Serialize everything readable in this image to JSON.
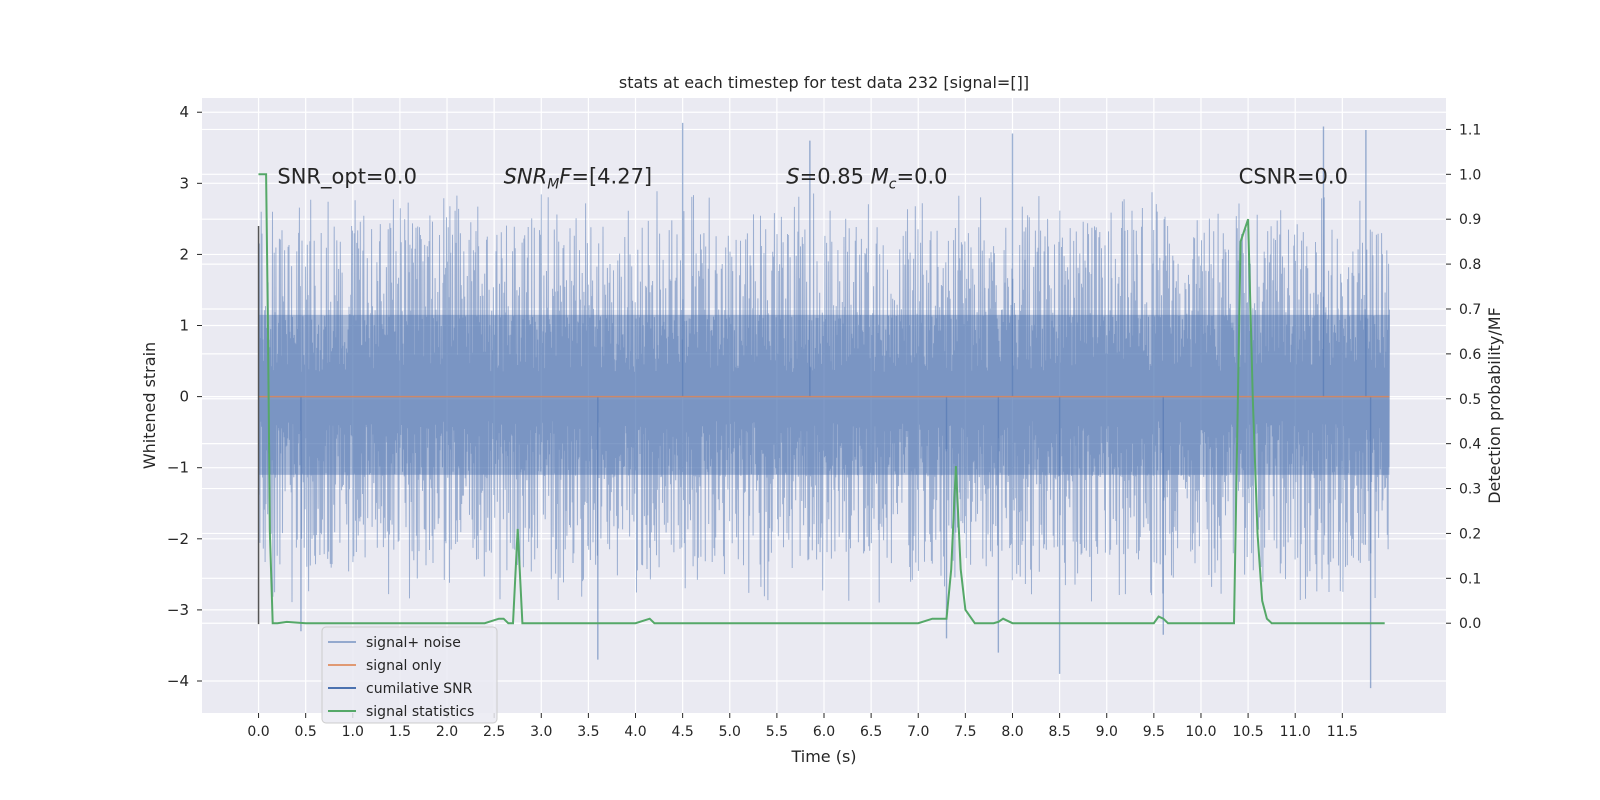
{
  "chart_data": {
    "type": "line",
    "title": "stats at each timestep for test data 232 [signal=[]]",
    "xlabel": "Time (s)",
    "ylabel_left": "Whitened strain",
    "ylabel_right": "Detection probability/MF",
    "xlim": [
      -0.6,
      12.6
    ],
    "ylim_left": [
      -4.45,
      4.2
    ],
    "ylim_right": [
      -0.2,
      1.17
    ],
    "x_ticks": [
      0.0,
      0.5,
      1.0,
      1.5,
      2.0,
      2.5,
      3.0,
      3.5,
      4.0,
      4.5,
      5.0,
      5.5,
      6.0,
      6.5,
      7.0,
      7.5,
      8.0,
      8.5,
      9.0,
      9.5,
      10.0,
      10.5,
      11.0,
      11.5
    ],
    "x_tick_labels": [
      "0.0",
      "0.5",
      "1.0",
      "1.5",
      "2.0",
      "2.5",
      "3.0",
      "3.5",
      "4.0",
      "4.5",
      "5.0",
      "5.5",
      "6.0",
      "6.5",
      "7.0",
      "7.5",
      "8.0",
      "8.5",
      "9.0",
      "9.5",
      "10.0",
      "10.5",
      "11.0",
      "11.5"
    ],
    "y_left_ticks": [
      4,
      3,
      2,
      1,
      0,
      -1,
      -2,
      -3,
      -4
    ],
    "y_left_tick_labels": [
      "4",
      "3",
      "2",
      "1",
      "0",
      "−1",
      "−2",
      "−3",
      "−4"
    ],
    "y_right_ticks": [
      1.1,
      1.0,
      0.9,
      0.8,
      0.7,
      0.6,
      0.5,
      0.4,
      0.3,
      0.2,
      0.1,
      0.0
    ],
    "y_right_tick_labels": [
      "1.1",
      "1.0",
      "0.9",
      "0.8",
      "0.7",
      "0.6",
      "0.5",
      "0.4",
      "0.3",
      "0.2",
      "0.1",
      "0.0"
    ],
    "grid": true,
    "legend_position": "lower-left",
    "annotations": [
      {
        "text": "SNR_opt=0.0",
        "x": 0.2,
        "y": 3.0
      },
      {
        "text": "SNR_MF=[4.27]",
        "x": 2.6,
        "y": 3.0
      },
      {
        "text": "S=0.85   M_c=0.0",
        "x": 5.6,
        "y": 3.0
      },
      {
        "text": "CSNR=0.0",
        "x": 10.4,
        "y": 3.0
      }
    ],
    "series": [
      {
        "name": "signal+ noise",
        "color": "#4c72b0",
        "axis": "left",
        "x_range": [
          0.0,
          12.0
        ],
        "band": [
          -1.1,
          1.15
        ],
        "envelope": [
          -2.3,
          2.4
        ],
        "spikes": [
          {
            "x": 4.5,
            "y": 3.85
          },
          {
            "x": 8.5,
            "y": -3.9
          },
          {
            "x": 11.8,
            "y": -4.1
          },
          {
            "x": 3.6,
            "y": -3.7
          },
          {
            "x": 11.3,
            "y": 3.8
          },
          {
            "x": 11.75,
            "y": 3.75
          },
          {
            "x": 7.85,
            "y": -3.6
          },
          {
            "x": 7.3,
            "y": -3.4
          },
          {
            "x": 9.6,
            "y": -3.35
          },
          {
            "x": 0.45,
            "y": -3.3
          },
          {
            "x": 8.0,
            "y": 3.7
          },
          {
            "x": 5.85,
            "y": 3.6
          }
        ]
      },
      {
        "name": "signal only",
        "color": "#dd8452",
        "axis": "left",
        "values": 0.0
      },
      {
        "name": "cumilative SNR",
        "color": "#4c72b0",
        "axis": "left",
        "x": [
          0.0,
          0.0
        ],
        "y": [
          -3.2,
          2.4
        ]
      },
      {
        "name": "signal statistics",
        "color": "#55a868",
        "axis": "right",
        "x": [
          0.0,
          0.05,
          0.08,
          0.1,
          0.12,
          0.15,
          0.2,
          0.3,
          0.5,
          1.0,
          2.0,
          2.4,
          2.55,
          2.6,
          2.65,
          2.7,
          2.75,
          2.8,
          2.85,
          3.0,
          4.0,
          4.15,
          4.2,
          5.0,
          7.0,
          7.15,
          7.2,
          7.3,
          7.35,
          7.4,
          7.45,
          7.5,
          7.6,
          7.7,
          7.8,
          7.85,
          7.9,
          8.0,
          8.1,
          8.2,
          9.0,
          9.5,
          9.55,
          9.6,
          9.65,
          10.0,
          10.3,
          10.35,
          10.42,
          10.5,
          10.55,
          10.6,
          10.65,
          10.7,
          10.75,
          10.8,
          11.0,
          11.95
        ],
        "y": [
          1.0,
          1.0,
          1.0,
          0.65,
          0.2,
          0.0,
          0.0,
          0.003,
          0.0,
          0.0,
          0.0,
          0.0,
          0.01,
          0.01,
          0.0,
          0.0,
          0.21,
          0.0,
          0.0,
          0.0,
          0.0,
          0.01,
          0.0,
          0.0,
          0.0,
          0.01,
          0.01,
          0.01,
          0.12,
          0.35,
          0.12,
          0.03,
          0.0,
          0.0,
          0.0,
          0.003,
          0.01,
          0.0,
          0.0,
          0.0,
          0.0,
          0.0,
          0.015,
          0.01,
          0.0,
          0.0,
          0.0,
          0.0,
          0.85,
          0.9,
          0.5,
          0.2,
          0.05,
          0.01,
          0.0,
          0.0,
          0.0,
          0.0
        ]
      }
    ]
  },
  "legend": {
    "items": [
      "signal+ noise",
      "signal only",
      "cumilative SNR",
      "signal statistics"
    ]
  }
}
